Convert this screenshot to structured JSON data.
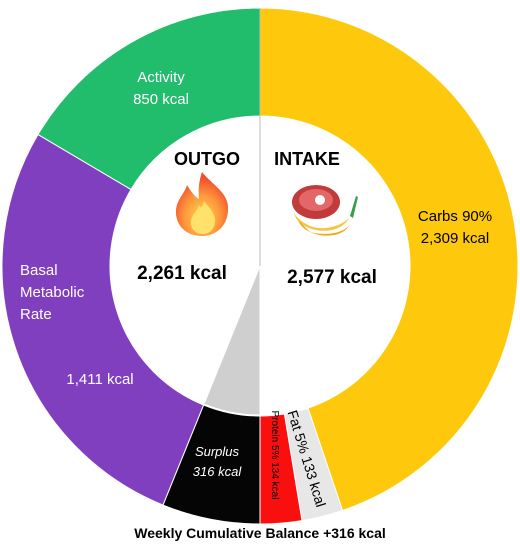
{
  "chart_data": {
    "type": "pie",
    "subtype": "donut",
    "caption": "Weekly Cumulative Balance +316 kcal",
    "outgo": {
      "title": "OUTGO",
      "total_label": "2,261 kcal",
      "icon": "fire-icon",
      "slices": [
        {
          "name": "Activity",
          "value": 850,
          "value_label": "850 kcal",
          "color": "#21bc6c"
        },
        {
          "name": "Basal Metabolic Rate",
          "value": 1411,
          "value_label": "1,411 kcal",
          "color": "#7f3fbf"
        },
        {
          "name": "Surplus",
          "value": 316,
          "value_label": "316 kcal",
          "color": "#050505"
        }
      ]
    },
    "intake": {
      "title": "INTAKE",
      "total_label": "2,577 kcal",
      "icon": "steak-banana-icon",
      "slices": [
        {
          "name": "Carbs",
          "value": 2309,
          "percent_label": "90%",
          "value_label": "2,309 kcal",
          "color": "#fec90c"
        },
        {
          "name": "Fat",
          "value": 133,
          "percent_label": "5%",
          "value_label": "133 kcal",
          "color": "#e7e7e7"
        },
        {
          "name": "Protein",
          "value": 134,
          "percent_label": "5%",
          "value_label": "134 kcal",
          "color": "#fa0f0f"
        }
      ]
    }
  }
}
